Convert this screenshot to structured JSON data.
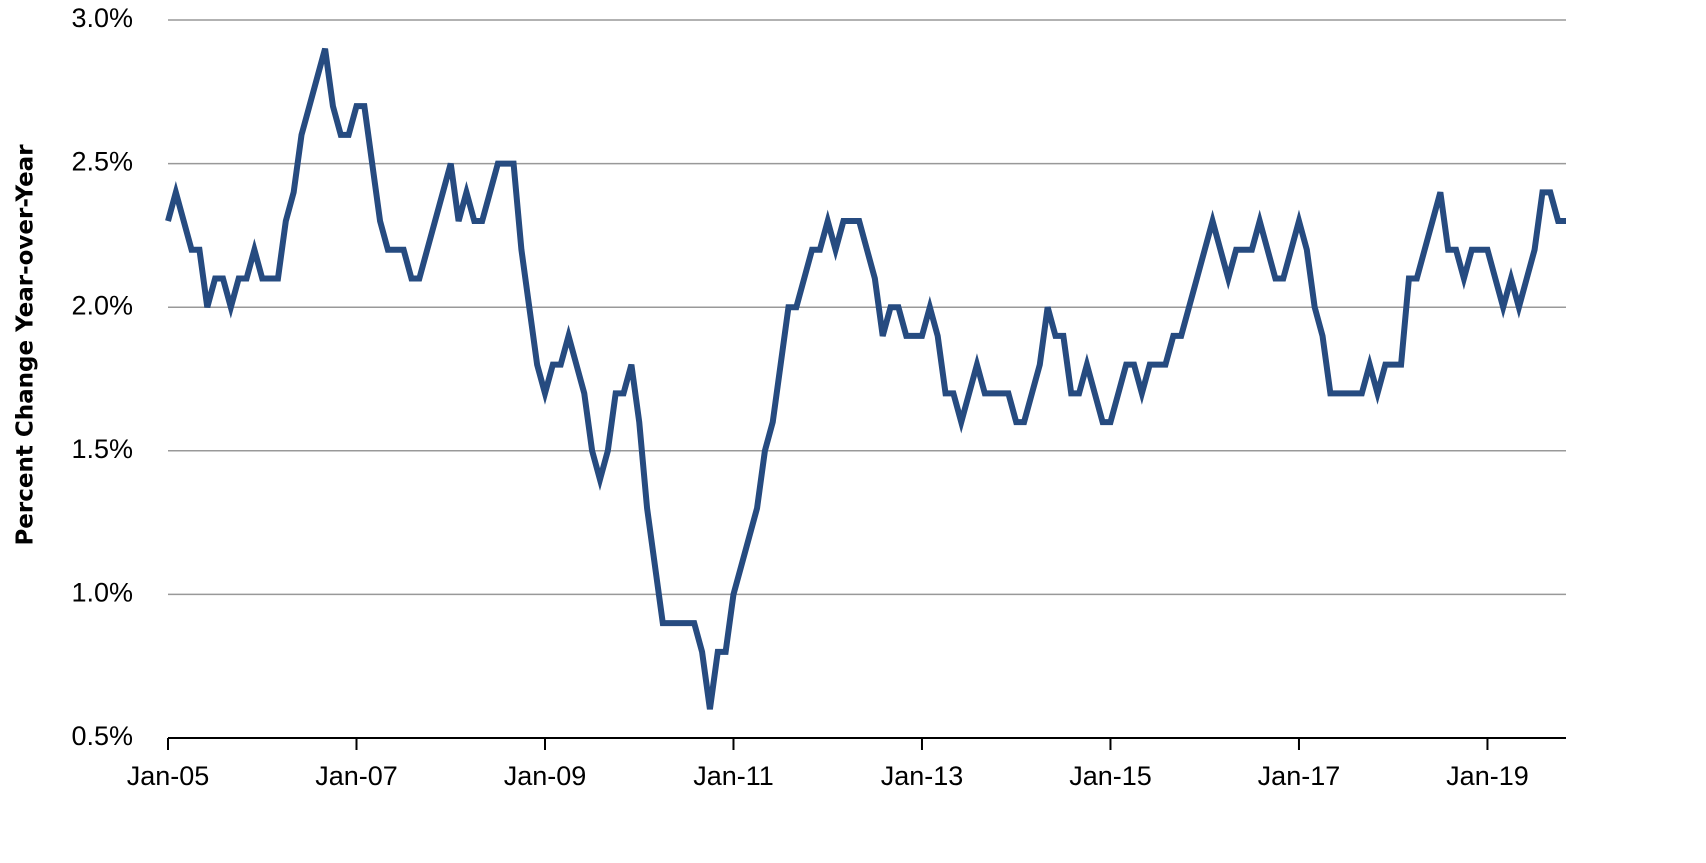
{
  "chart_data": {
    "type": "line",
    "ylabel": "Percent Change Year-over-Year",
    "categories": [
      "Jan-05",
      null,
      null,
      null,
      null,
      null,
      null,
      null,
      null,
      null,
      null,
      null,
      null,
      null,
      null,
      null,
      null,
      null,
      null,
      null,
      null,
      null,
      null,
      null,
      "Jan-07",
      null,
      null,
      null,
      null,
      null,
      null,
      null,
      null,
      null,
      null,
      null,
      null,
      null,
      null,
      null,
      null,
      null,
      null,
      null,
      null,
      null,
      null,
      null,
      "Jan-09",
      null,
      null,
      null,
      null,
      null,
      null,
      null,
      null,
      null,
      null,
      null,
      null,
      null,
      null,
      null,
      null,
      null,
      null,
      null,
      null,
      null,
      null,
      null,
      "Jan-11",
      null,
      null,
      null,
      null,
      null,
      null,
      null,
      null,
      null,
      null,
      null,
      null,
      null,
      null,
      null,
      null,
      null,
      null,
      null,
      null,
      null,
      null,
      null,
      "Jan-13",
      null,
      null,
      null,
      null,
      null,
      null,
      null,
      null,
      null,
      null,
      null,
      null,
      null,
      null,
      null,
      null,
      null,
      null,
      null,
      null,
      null,
      null,
      null,
      "Jan-15",
      null,
      null,
      null,
      null,
      null,
      null,
      null,
      null,
      null,
      null,
      null,
      null,
      null,
      null,
      null,
      null,
      null,
      null,
      null,
      null,
      null,
      null,
      null,
      "Jan-17",
      null,
      null,
      null,
      null,
      null,
      null,
      null,
      null,
      null,
      null,
      null,
      null,
      null,
      null,
      null,
      null,
      null,
      null,
      null,
      null,
      null,
      null,
      null,
      "Jan-19",
      null,
      null,
      null,
      null,
      null,
      null,
      null,
      null,
      null,
      null
    ],
    "values": [
      2.3,
      2.4,
      2.3,
      2.2,
      2.2,
      2.0,
      2.1,
      2.1,
      2.0,
      2.1,
      2.1,
      2.2,
      2.1,
      2.1,
      2.1,
      2.3,
      2.4,
      2.6,
      2.7,
      2.8,
      2.9,
      2.7,
      2.6,
      2.6,
      2.7,
      2.7,
      2.5,
      2.3,
      2.2,
      2.2,
      2.2,
      2.1,
      2.1,
      2.2,
      2.3,
      2.4,
      2.5,
      2.3,
      2.4,
      2.3,
      2.3,
      2.4,
      2.5,
      2.5,
      2.5,
      2.2,
      2.0,
      1.8,
      1.7,
      1.8,
      1.8,
      1.9,
      1.8,
      1.7,
      1.5,
      1.4,
      1.5,
      1.7,
      1.7,
      1.8,
      1.6,
      1.3,
      1.1,
      0.9,
      0.9,
      0.9,
      0.9,
      0.9,
      0.8,
      0.6,
      0.8,
      0.8,
      1.0,
      1.1,
      1.2,
      1.3,
      1.5,
      1.6,
      1.8,
      2.0,
      2.0,
      2.1,
      2.2,
      2.2,
      2.3,
      2.2,
      2.3,
      2.3,
      2.3,
      2.2,
      2.1,
      1.9,
      2.0,
      2.0,
      1.9,
      1.9,
      1.9,
      2.0,
      1.9,
      1.7,
      1.7,
      1.6,
      1.7,
      1.8,
      1.7,
      1.7,
      1.7,
      1.7,
      1.6,
      1.6,
      1.7,
      1.8,
      2.0,
      1.9,
      1.9,
      1.7,
      1.7,
      1.8,
      1.7,
      1.6,
      1.6,
      1.7,
      1.8,
      1.8,
      1.7,
      1.8,
      1.8,
      1.8,
      1.9,
      1.9,
      2.0,
      2.1,
      2.2,
      2.3,
      2.2,
      2.1,
      2.2,
      2.2,
      2.2,
      2.3,
      2.2,
      2.1,
      2.1,
      2.2,
      2.3,
      2.2,
      2.0,
      1.9,
      1.7,
      1.7,
      1.7,
      1.7,
      1.7,
      1.8,
      1.7,
      1.8,
      1.8,
      1.8,
      2.1,
      2.1,
      2.2,
      2.3,
      2.4,
      2.2,
      2.2,
      2.1,
      2.2,
      2.2,
      2.2,
      2.1,
      2.0,
      2.1,
      2.0,
      2.1,
      2.2,
      2.4,
      2.4,
      2.3,
      2.3
    ],
    "color": "#264b80",
    "ylim": [
      0.5,
      3.0
    ],
    "yticks": [
      {
        "value": 0.5,
        "label": "0.5%"
      },
      {
        "value": 1.0,
        "label": "1.0%"
      },
      {
        "value": 1.5,
        "label": "1.5%"
      },
      {
        "value": 2.0,
        "label": "2.0%"
      },
      {
        "value": 2.5,
        "label": "2.5%"
      },
      {
        "value": 3.0,
        "label": "3.0%"
      }
    ],
    "grid": true
  }
}
